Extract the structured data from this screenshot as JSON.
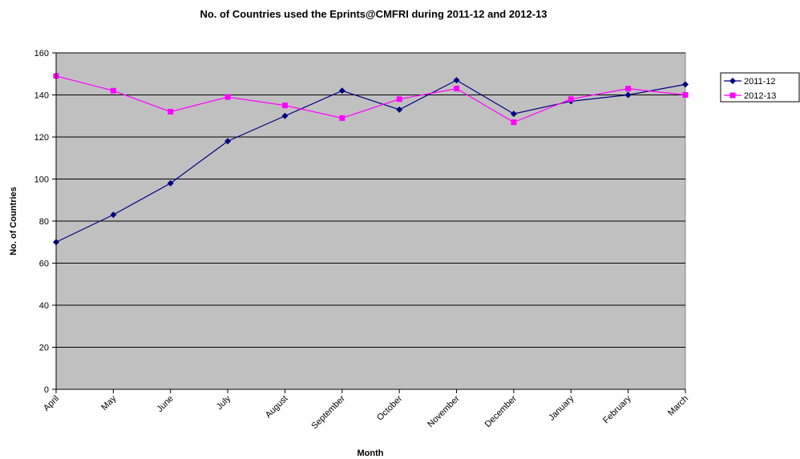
{
  "chart_data": {
    "type": "line",
    "title": "No. of Countries used the Eprints@CMFRI during 2011-12 and 2012-13",
    "xlabel": "Month",
    "ylabel": "No. of Countries",
    "categories": [
      "April",
      "May",
      "June",
      "July",
      "August",
      "September",
      "October",
      "November",
      "December",
      "January",
      "February",
      "March"
    ],
    "ylim": [
      0,
      160
    ],
    "yticks": [
      0,
      20,
      40,
      60,
      80,
      100,
      120,
      140,
      160
    ],
    "grid": true,
    "legend_position": "right",
    "plot_background": "#C0C0C0",
    "series": [
      {
        "name": "2011-12",
        "color": "#000080",
        "marker": "diamond",
        "values": [
          70,
          83,
          98,
          118,
          130,
          142,
          133,
          147,
          131,
          137,
          140,
          145
        ]
      },
      {
        "name": "2012-13",
        "color": "#FF00FF",
        "marker": "square",
        "values": [
          149,
          142,
          132,
          139,
          135,
          129,
          138,
          143,
          127,
          138,
          143,
          140
        ]
      }
    ]
  }
}
